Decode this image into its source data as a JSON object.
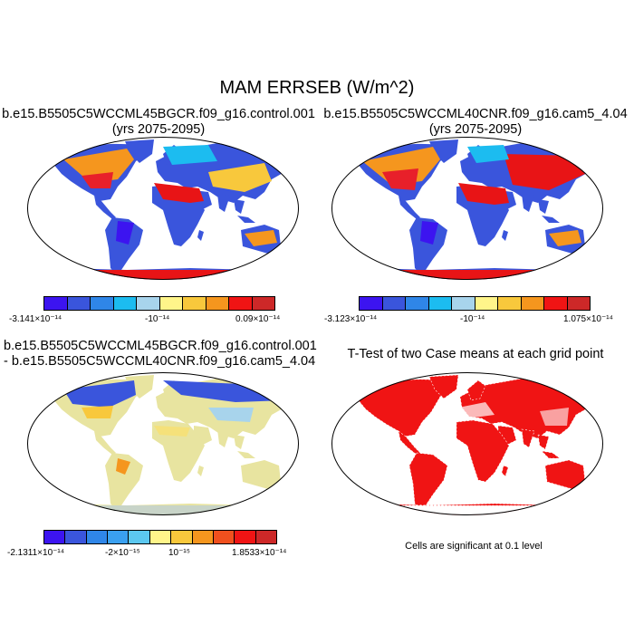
{
  "title": "MAM ERRSEB (W/m^2)",
  "panels": {
    "top_left": {
      "title_line1": "b.e15.B5505C5WCCML45BGCR.f09_g16.control.001",
      "title_line2": "(yrs 2075-2095)",
      "colorbar": {
        "colors": [
          "#3c14f0",
          "#3a55dc",
          "#2f86e8",
          "#1cbcf0",
          "#a8d4ec",
          "#fff58a",
          "#f8c83c",
          "#f5961e",
          "#f01414",
          "#cd2828"
        ],
        "labels": [
          "-3.141×10⁻¹⁴",
          "-10⁻¹⁴",
          "0.09×10⁻¹⁴"
        ]
      }
    },
    "top_right": {
      "title_line1": "b.e15.B5505C5WCCML40CNR.f09_g16.cam5_4.04",
      "title_line2": "(yrs 2075-2095)",
      "colorbar": {
        "colors": [
          "#3c14f0",
          "#3a55dc",
          "#2f86e8",
          "#1cbcf0",
          "#a8d4ec",
          "#fff58a",
          "#f8c83c",
          "#f5961e",
          "#f01414",
          "#cd2828"
        ],
        "labels": [
          "-3.123×10⁻¹⁴",
          "-10⁻¹⁴",
          "1.075×10⁻¹⁴"
        ]
      }
    },
    "bottom_left": {
      "title_line1": "b.e15.B5505C5WCCML45BGCR.f09_g16.control.001",
      "title_line2": "- b.e15.B5505C5WCCML40CNR.f09_g16.cam5_4.04",
      "colorbar": {
        "colors": [
          "#3c14f0",
          "#3a55dc",
          "#2f86e8",
          "#3aa0f0",
          "#5cc8f0",
          "#fff58a",
          "#f8c83c",
          "#f5961e",
          "#f0501e",
          "#f01414",
          "#cd2828"
        ],
        "labels": [
          "-2.1311×10⁻¹⁴",
          "-2×10⁻¹⁵",
          "10⁻¹⁵",
          "1.8533×10⁻¹⁴"
        ]
      }
    },
    "bottom_right": {
      "title_line1": "T-Test of two Case means at each grid point",
      "footnote": "Cells are significant at 0.1 level"
    }
  }
}
